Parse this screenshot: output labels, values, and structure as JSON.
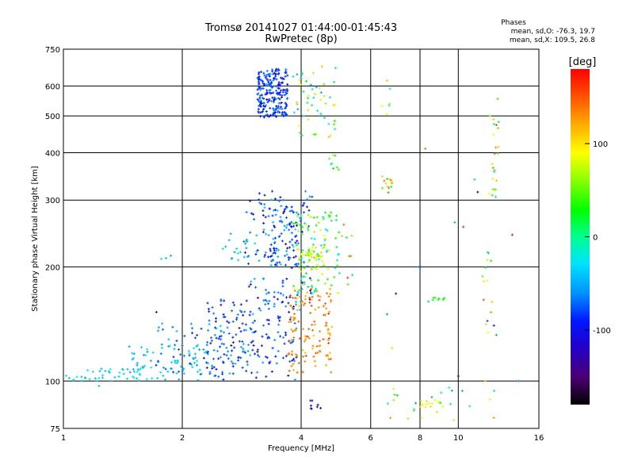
{
  "chart_data": {
    "type": "scatter",
    "title": "Tromsø 20141027 01:44:00-01:45:43",
    "subtitle": "RwPretec (8p)",
    "stats": {
      "heading": "Phases",
      "line1": "mean, sd,O: -76.3, 19.7",
      "line2": "mean, sd,X: 109.5, 26.8"
    },
    "xlabel": "Frequency [MHz]",
    "ylabel": "Stationary phase Virtual Height [km]",
    "x_scale": "log",
    "y_scale": "log",
    "xlim": [
      1,
      16
    ],
    "ylim": [
      75,
      750
    ],
    "xticks": [
      1,
      2,
      4,
      6,
      8,
      10,
      16
    ],
    "xtick_labels": [
      "1",
      "2",
      "4",
      "6",
      "8",
      "10",
      "16"
    ],
    "yticks": [
      75,
      100,
      200,
      300,
      400,
      500,
      600,
      750
    ],
    "ytick_labels": [
      "75",
      "100",
      "200",
      "300",
      "400",
      "500",
      "600",
      "750"
    ],
    "grid": true,
    "colorbar": {
      "label": "[deg]",
      "range": [
        -180,
        180
      ],
      "ticks": [
        100,
        0,
        -100
      ],
      "tick_labels": [
        "100",
        "0",
        "-100"
      ]
    },
    "clusters": [
      {
        "f": [
          1.0,
          1.55
        ],
        "h": [
          100,
          108
        ],
        "phase": [
          -50,
          -20
        ],
        "n": 40
      },
      {
        "f": [
          1.45,
          2.3
        ],
        "h": [
          100,
          125
        ],
        "phase": [
          -60,
          -20
        ],
        "n": 70
      },
      {
        "f": [
          1.7,
          3.1
        ],
        "h": [
          104,
          142
        ],
        "phase": [
          -90,
          -40
        ],
        "n": 90
      },
      {
        "f": [
          2.3,
          3.9
        ],
        "h": [
          100,
          165
        ],
        "phase": [
          -110,
          -50
        ],
        "n": 160
      },
      {
        "f": [
          2.8,
          4.3
        ],
        "h": [
          150,
          320
        ],
        "phase": [
          -110,
          -40
        ],
        "n": 130
      },
      {
        "f": [
          3.2,
          4.0
        ],
        "h": [
          200,
          290
        ],
        "phase": [
          -120,
          -40
        ],
        "n": 80
      },
      {
        "f": [
          3.7,
          4.8
        ],
        "h": [
          105,
          175
        ],
        "phase": [
          110,
          160
        ],
        "n": 130
      },
      {
        "f": [
          3.8,
          5.0
        ],
        "h": [
          170,
          280
        ],
        "phase": [
          -40,
          90
        ],
        "n": 110
      },
      {
        "f": [
          3.9,
          4.6
        ],
        "h": [
          200,
          225
        ],
        "phase": [
          70,
          110
        ],
        "n": 30
      },
      {
        "f": [
          3.1,
          3.7
        ],
        "h": [
          495,
          665
        ],
        "phase": [
          -115,
          -55
        ],
        "n": 230
      },
      {
        "f": [
          3.8,
          4.9
        ],
        "h": [
          440,
          680
        ],
        "phase": [
          -60,
          120
        ],
        "n": 55
      },
      {
        "f": [
          4.7,
          5.0
        ],
        "h": [
          360,
          395
        ],
        "phase": [
          -40,
          120
        ],
        "n": 8
      },
      {
        "f": [
          2.5,
          3.1
        ],
        "h": [
          207,
          245
        ],
        "phase": [
          -60,
          -20
        ],
        "n": 18
      },
      {
        "f": [
          6.4,
          6.8
        ],
        "h": [
          310,
          350
        ],
        "phase": [
          -10,
          160
        ],
        "n": 14
      },
      {
        "f": [
          6.3,
          6.8
        ],
        "h": [
          505,
          650
        ],
        "phase": [
          -40,
          110
        ],
        "n": 5
      },
      {
        "f": [
          11.9,
          12.7
        ],
        "h": [
          300,
          570
        ],
        "phase": [
          -40,
          160
        ],
        "n": 24
      },
      {
        "f": [
          11.5,
          12.7
        ],
        "h": [
          130,
          220
        ],
        "phase": [
          -100,
          160
        ],
        "n": 16
      },
      {
        "f": [
          8.0,
          9.2
        ],
        "h": [
          85,
          90
        ],
        "phase": [
          80,
          110
        ],
        "n": 14
      },
      {
        "f": [
          4.2,
          4.5
        ],
        "h": [
          84,
          89
        ],
        "phase": [
          -140,
          -100
        ],
        "n": 8
      },
      {
        "f": [
          6.4,
          12.8
        ],
        "h": [
          78,
          97
        ],
        "phase": [
          -60,
          160
        ],
        "n": 22
      },
      {
        "f": [
          8.6,
          9.3
        ],
        "h": [
          163,
          166
        ],
        "phase": [
          20,
          40
        ],
        "n": 8
      },
      {
        "f": [
          5.0,
          5.4
        ],
        "h": [
          165,
          260
        ],
        "phase": [
          -40,
          160
        ],
        "n": 10
      }
    ],
    "points": [
      {
        "f": 1.77,
        "h": 210,
        "phase": -30
      },
      {
        "f": 1.82,
        "h": 211,
        "phase": -40
      },
      {
        "f": 1.87,
        "h": 214,
        "phase": -50
      },
      {
        "f": 1.72,
        "h": 152,
        "phase": -100
      },
      {
        "f": 1.23,
        "h": 97,
        "phase": -45
      },
      {
        "f": 6.6,
        "h": 620,
        "phase": 110
      },
      {
        "f": 6.95,
        "h": 170,
        "phase": -90
      },
      {
        "f": 8.25,
        "h": 410,
        "phase": 140
      },
      {
        "f": 7.95,
        "h": 200,
        "phase": -60
      },
      {
        "f": 8.4,
        "h": 162,
        "phase": -40
      },
      {
        "f": 9.8,
        "h": 262,
        "phase": -50
      },
      {
        "f": 10.3,
        "h": 255,
        "phase": 165
      },
      {
        "f": 10.0,
        "h": 103,
        "phase": -150
      },
      {
        "f": 11.7,
        "h": 100,
        "phase": 120
      },
      {
        "f": 12.3,
        "h": 80,
        "phase": 130
      },
      {
        "f": 14.2,
        "h": 100,
        "phase": -60
      },
      {
        "f": 13.7,
        "h": 243,
        "phase": 175
      },
      {
        "f": 11.0,
        "h": 340,
        "phase": -40
      },
      {
        "f": 11.2,
        "h": 315,
        "phase": -160
      },
      {
        "f": 6.9,
        "h": 92,
        "phase": 40
      },
      {
        "f": 6.8,
        "h": 122,
        "phase": 110
      },
      {
        "f": 6.6,
        "h": 150,
        "phase": -60
      }
    ]
  },
  "colors": {
    "colormap": [
      "#000000",
      "#4b0070",
      "#2200c8",
      "#0018ff",
      "#0090ff",
      "#00e2ff",
      "#00ff90",
      "#00ff00",
      "#8cff00",
      "#ffff00",
      "#ffb000",
      "#ff5000",
      "#ff0000"
    ],
    "grid": "#000000"
  }
}
